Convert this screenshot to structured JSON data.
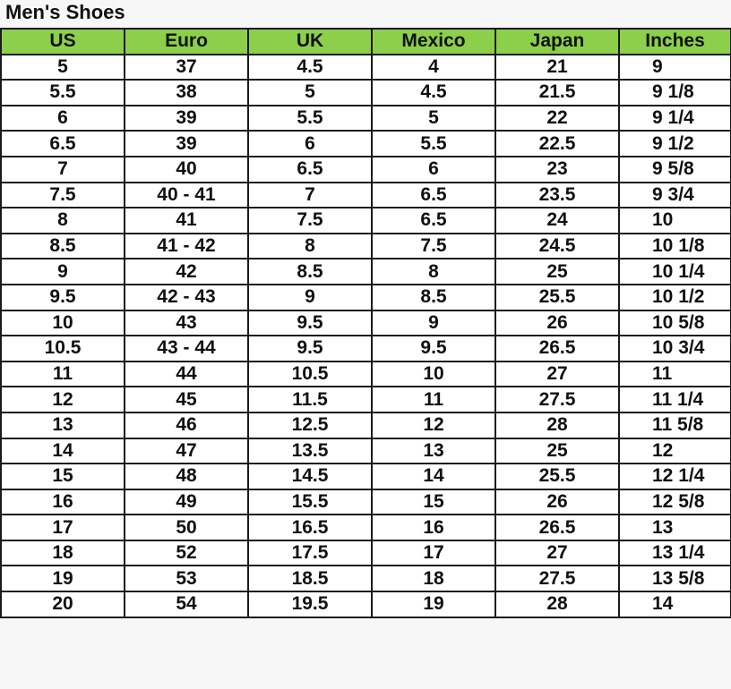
{
  "title": "Men's Shoes",
  "colors": {
    "header_bg": "#8ccf4a",
    "border": "#1a1a1a"
  },
  "table": {
    "headers": [
      "US",
      "Euro",
      "UK",
      "Mexico",
      "Japan",
      "Inches"
    ],
    "rows": [
      [
        "5",
        "37",
        "4.5",
        "4",
        "21",
        "9"
      ],
      [
        "5.5",
        "38",
        "5",
        "4.5",
        "21.5",
        "9 1/8"
      ],
      [
        "6",
        "39",
        "5.5",
        "5",
        "22",
        "9 1/4"
      ],
      [
        "6.5",
        "39",
        "6",
        "5.5",
        "22.5",
        "9 1/2"
      ],
      [
        "7",
        "40",
        "6.5",
        "6",
        "23",
        "9 5/8"
      ],
      [
        "7.5",
        "40 - 41",
        "7",
        "6.5",
        "23.5",
        "9 3/4"
      ],
      [
        "8",
        "41",
        "7.5",
        "6.5",
        "24",
        "10"
      ],
      [
        "8.5",
        "41 - 42",
        "8",
        "7.5",
        "24.5",
        "10 1/8"
      ],
      [
        "9",
        "42",
        "8.5",
        "8",
        "25",
        "10 1/4"
      ],
      [
        "9.5",
        "42 - 43",
        "9",
        "8.5",
        "25.5",
        "10 1/2"
      ],
      [
        "10",
        "43",
        "9.5",
        "9",
        "26",
        "10 5/8"
      ],
      [
        "10.5",
        "43 - 44",
        "9.5",
        "9.5",
        "26.5",
        "10 3/4"
      ],
      [
        "11",
        "44",
        "10.5",
        "10",
        "27",
        "11"
      ],
      [
        "12",
        "45",
        "11.5",
        "11",
        "27.5",
        "11 1/4"
      ],
      [
        "13",
        "46",
        "12.5",
        "12",
        "28",
        "11 5/8"
      ],
      [
        "14",
        "47",
        "13.5",
        "13",
        "25",
        "12"
      ],
      [
        "15",
        "48",
        "14.5",
        "14",
        "25.5",
        "12 1/4"
      ],
      [
        "16",
        "49",
        "15.5",
        "15",
        "26",
        "12 5/8"
      ],
      [
        "17",
        "50",
        "16.5",
        "16",
        "26.5",
        "13"
      ],
      [
        "18",
        "52",
        "17.5",
        "17",
        "27",
        "13 1/4"
      ],
      [
        "19",
        "53",
        "18.5",
        "18",
        "27.5",
        "13 5/8"
      ],
      [
        "20",
        "54",
        "19.5",
        "19",
        "28",
        "14"
      ]
    ]
  }
}
